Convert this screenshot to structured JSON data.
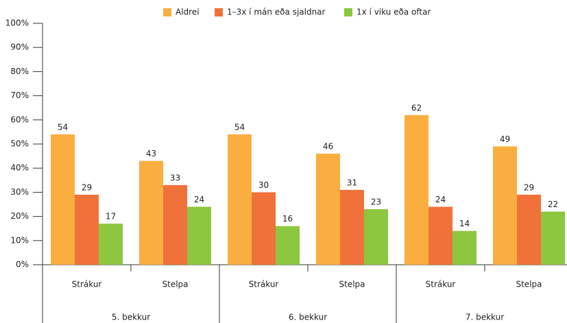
{
  "chart_data": {
    "type": "bar",
    "categories": [
      "Strákur",
      "Stelpa",
      "Strákur",
      "Stelpa",
      "Strákur",
      "Stelpa"
    ],
    "groups": [
      "5. bekkur",
      "6. bekkur",
      "7. bekkur"
    ],
    "series": [
      {
        "name": "Aldrei",
        "color": "#fbae40",
        "values": [
          54,
          43,
          54,
          46,
          62,
          49
        ]
      },
      {
        "name": "1–3x í mán eða sjaldnar",
        "color": "#f0723a",
        "values": [
          29,
          33,
          30,
          31,
          24,
          29
        ]
      },
      {
        "name": "1x í viku eða oftar",
        "color": "#8dc63f",
        "values": [
          17,
          24,
          16,
          23,
          14,
          22
        ]
      }
    ],
    "ylim": [
      0,
      100
    ],
    "yticks": [
      {
        "value": 0,
        "label": "0%"
      },
      {
        "value": 10,
        "label": "10%"
      },
      {
        "value": 20,
        "label": "20%"
      },
      {
        "value": 30,
        "label": "30%"
      },
      {
        "value": 40,
        "label": "40%"
      },
      {
        "value": 50,
        "label": "50%"
      },
      {
        "value": 60,
        "label": "60%"
      },
      {
        "value": 70,
        "label": "70%"
      },
      {
        "value": 80,
        "label": "80%"
      },
      {
        "value": 90,
        "label": "90%"
      },
      {
        "value": 100,
        "label": "100%"
      }
    ],
    "legend": "top",
    "grid": false
  }
}
